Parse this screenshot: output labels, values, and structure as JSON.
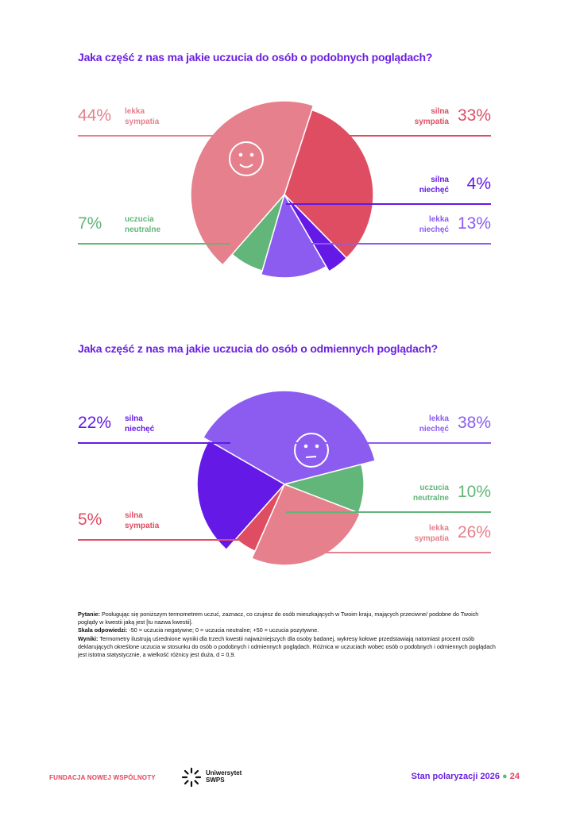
{
  "chart_data": [
    {
      "type": "pie",
      "title": "Jaka część z nas ma jakie uczucia do osób o podobnych poglądach?",
      "icon": "smile-face-icon",
      "slices": [
        {
          "name": "silna sympatia",
          "value": 33,
          "label": "33%",
          "color": "#df4d63",
          "side": "right"
        },
        {
          "name": "silna niechęć",
          "value": 4,
          "label": "4%",
          "color": "#6419e6",
          "side": "right"
        },
        {
          "name": "lekka niechęć",
          "value": 13,
          "label": "13%",
          "color": "#8c5cf0",
          "side": "right"
        },
        {
          "name": "uczucia neutralne",
          "value": 7,
          "label": "7%",
          "color": "#62b679",
          "side": "left"
        },
        {
          "name": "lekka sympatia",
          "value": 44,
          "label": "44%",
          "color": "#e5808c",
          "side": "left"
        }
      ]
    },
    {
      "type": "pie",
      "title": "Jaka część z nas ma jakie uczucia do osób o odmiennych poglądach?",
      "icon": "neutral-face-icon",
      "slices": [
        {
          "name": "lekka niechęć",
          "value": 38,
          "label": "38%",
          "color": "#8c5cf0",
          "side": "right"
        },
        {
          "name": "uczucia neutralne",
          "value": 10,
          "label": "10%",
          "color": "#62b679",
          "side": "right"
        },
        {
          "name": "lekka sympatia",
          "value": 26,
          "label": "26%",
          "color": "#e5808c",
          "side": "right"
        },
        {
          "name": "silna sympatia",
          "value": 5,
          "label": "5%",
          "color": "#df4d63",
          "side": "left"
        },
        {
          "name": "silna niechęć",
          "value": 22,
          "label": "22%",
          "color": "#6419e6",
          "side": "left"
        }
      ]
    }
  ],
  "notes": {
    "q_label": "Pytanie:",
    "q_text": "Posługując się poniższym termometrem uczuć, zaznacz, co czujesz do osób mieszkających w Twoim kraju, mających przeciwne/ podobne do Twoich poglądy w kwestii jaką jest [tu nazwa kwestii].",
    "s_label": "Skala odpowiedzi:",
    "s_text": "-50 = uczucia negatywne; 0 = uczucia neutralne; +50 = uczucia pozytywne.",
    "w_label": "Wyniki:",
    "w_text": "Termometry ilustrują uśrednione wyniki dla trzech kwestii najważniejszych dla osoby badanej, wykresy kołowe przedstawiają natomiast procent osób deklarujących określone uczucia w stosunku do osób o podobnych i odmiennych poglądach. Różnica w uczuciach wobec osób o podobnych i odmiennych poglądach jest istotna statystycznie, a wielkość różnicy jest duża, d = 0,9."
  },
  "footer": {
    "foundation": "FUNDACJA NOWEJ WSPÓLNOTY",
    "university_line1": "Uniwersytet",
    "university_line2": "SWPS",
    "report": "Stan polaryzacji",
    "year": "2026",
    "dot": "●",
    "page": "24"
  }
}
